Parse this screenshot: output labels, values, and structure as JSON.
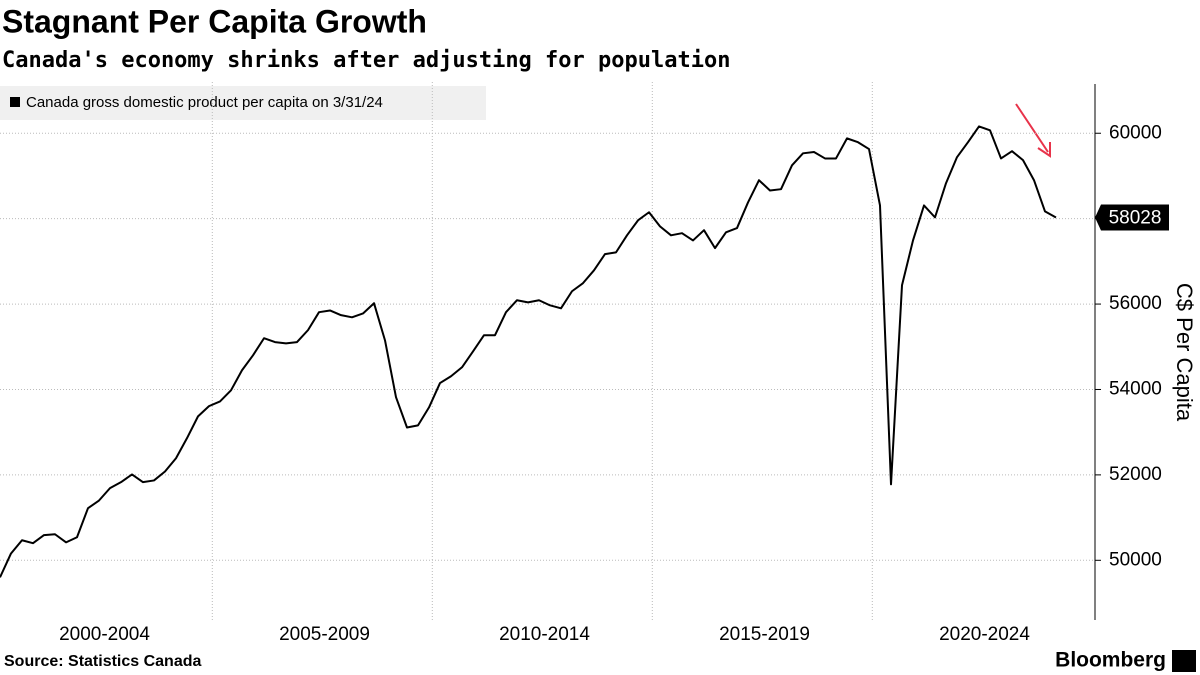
{
  "chart_data": {
    "type": "line",
    "title": "Stagnant Per Capita Growth",
    "subtitle": "Canada's economy shrinks after adjusting for population",
    "y_axis_label": "C$ Per Capita",
    "source": "Source: Statistics Canada",
    "brand": "Bloomberg",
    "period_labels": [
      "2000-2004",
      "2005-2009",
      "2010-2014",
      "2015-2019",
      "2020-2024"
    ],
    "series": [
      {
        "name": "Canada gross domestic product per capita on 3/31/24",
        "color": "#000000",
        "values": [
          49600,
          50160,
          50470,
          50400,
          50590,
          50610,
          50420,
          50540,
          51220,
          51400,
          51690,
          51830,
          52010,
          51830,
          51870,
          52080,
          52390,
          52860,
          53370,
          53610,
          53720,
          53980,
          54450,
          54800,
          55200,
          55110,
          55080,
          55110,
          55390,
          55810,
          55850,
          55740,
          55690,
          55780,
          56020,
          55150,
          53820,
          53110,
          53160,
          53580,
          54150,
          54310,
          54520,
          54890,
          55270,
          55270,
          55810,
          56090,
          56040,
          56090,
          55970,
          55900,
          56300,
          56490,
          56790,
          57170,
          57210,
          57610,
          57960,
          58150,
          57820,
          57610,
          57660,
          57490,
          57730,
          57310,
          57680,
          57780,
          58380,
          58900,
          58660,
          58690,
          59250,
          59530,
          59560,
          59410,
          59410,
          59880,
          59790,
          59630,
          58310,
          51780,
          56440,
          57490,
          58310,
          58030,
          58830,
          59440,
          59790,
          60160,
          60070,
          59410,
          59580,
          59370,
          58900,
          58170,
          58028
        ]
      }
    ],
    "ylim": [
      49000,
      61200
    ],
    "yticks": [
      50000,
      52000,
      54000,
      56000,
      58000,
      60000
    ],
    "grid": true,
    "y_axis_side": "right",
    "last_value_tag": true
  }
}
